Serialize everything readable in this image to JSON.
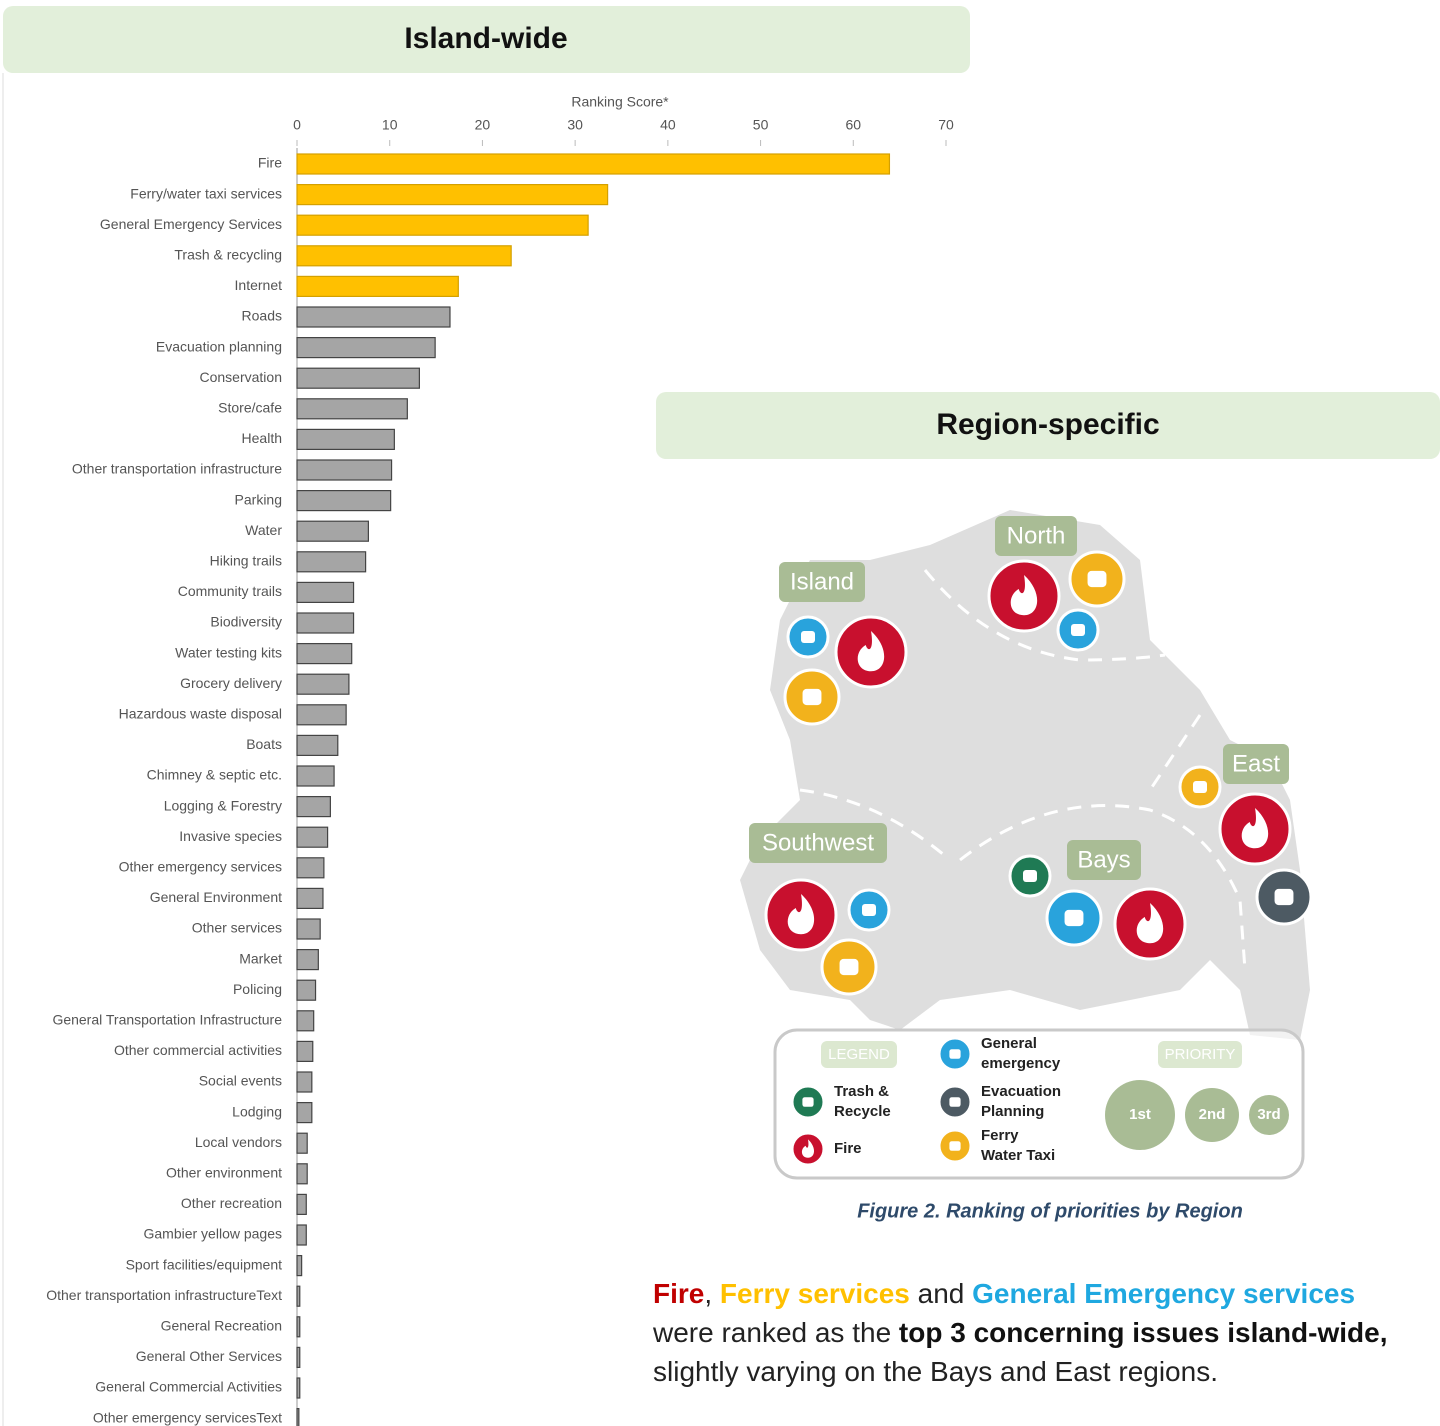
{
  "chart_data": {
    "type": "barh",
    "title": "Island-wide",
    "x_label": "Ranking Score*",
    "categories": [
      "Fire",
      "Ferry/water taxi services",
      "General Emergency Services",
      "Trash & recycling",
      "Internet",
      "Roads",
      "Evacuation planning",
      "Conservation",
      "Store/cafe",
      "Health",
      "Other transportation infrastructure",
      "Parking",
      "Water",
      "Hiking trails",
      "Community trails",
      "Biodiversity",
      "Water testing kits",
      "Grocery delivery",
      "Hazardous waste disposal",
      "Boats",
      "Chimney & septic etc.",
      "Logging & Forestry",
      "Invasive species",
      "Other emergency services",
      "General Environment",
      "Other services",
      "Market",
      "Policing",
      "General Transportation Infrastructure",
      "Other commercial activities",
      "Social events",
      "Lodging",
      "Local vendors",
      "Other environment",
      "Other recreation",
      "Gambier yellow pages",
      "Sport facilities/equipment",
      "Other transportation infrastructureText",
      "General Recreation",
      "General Other Services",
      "General Commercial Activities",
      "Other emergency servicesText"
    ],
    "values": [
      63.9,
      33.5,
      31.4,
      23.1,
      17.4,
      16.5,
      14.9,
      13.2,
      11.9,
      10.5,
      10.2,
      10.1,
      7.7,
      7.4,
      6.1,
      6.1,
      5.9,
      5.6,
      5.3,
      4.4,
      4.0,
      3.6,
      3.3,
      2.9,
      2.8,
      2.5,
      2.3,
      2.0,
      1.8,
      1.7,
      1.6,
      1.6,
      1.1,
      1.1,
      1.0,
      1.0,
      0.5,
      0.3,
      0.3,
      0.3,
      0.3,
      0.2
    ],
    "colors": [
      "#ffc000",
      "#ffc000",
      "#ffc000",
      "#ffc000",
      "#ffc000",
      "#a5a5a5",
      "#a5a5a5",
      "#a5a5a5",
      "#a5a5a5",
      "#a5a5a5",
      "#a5a5a5",
      "#a5a5a5",
      "#a5a5a5",
      "#a5a5a5",
      "#a5a5a5",
      "#a5a5a5",
      "#a5a5a5",
      "#a5a5a5",
      "#a5a5a5",
      "#a5a5a5",
      "#a5a5a5",
      "#a5a5a5",
      "#a5a5a5",
      "#a5a5a5",
      "#a5a5a5",
      "#a5a5a5",
      "#a5a5a5",
      "#a5a5a5",
      "#a5a5a5",
      "#a5a5a5",
      "#a5a5a5",
      "#a5a5a5",
      "#a5a5a5",
      "#a5a5a5",
      "#a5a5a5",
      "#a5a5a5",
      "#a5a5a5",
      "#a5a5a5",
      "#a5a5a5",
      "#a5a5a5",
      "#a5a5a5",
      "#a5a5a5"
    ],
    "xlim": [
      0,
      70
    ],
    "xticks": [
      0,
      10,
      20,
      30,
      40,
      50,
      60,
      70
    ]
  },
  "region": {
    "title": "Region-specific",
    "regions": [
      "North",
      "Island",
      "East",
      "Southwest",
      "Bays"
    ],
    "legend": {
      "title": "LEGEND",
      "items": [
        {
          "lines": [
            "General",
            "emergency"
          ]
        },
        {
          "lines": [
            "Trash &",
            "Recycle"
          ]
        },
        {
          "lines": [
            "Evacuation",
            "Planning"
          ]
        },
        {
          "lines": [
            "Fire"
          ]
        },
        {
          "lines": [
            "Ferry",
            "Water Taxi"
          ]
        }
      ],
      "priority_title": "PRIORITY",
      "priorities": [
        "1st",
        "2nd",
        "3rd"
      ]
    },
    "caption": "Figure 2. Ranking of priorities by Region"
  },
  "text": {
    "segments": [
      {
        "text": "Fire",
        "color": "#c00000",
        "bold": true
      },
      {
        "text": ", ",
        "color": "#222222",
        "bold": false
      },
      {
        "text": "Ferry services",
        "color": "#ffc000",
        "bold": true
      },
      {
        "text": " and ",
        "color": "#222222",
        "bold": false
      },
      {
        "text": "General Emergency services",
        "color": "#1fa8e0",
        "bold": true
      },
      {
        "text": " were ranked as the ",
        "color": "#222222",
        "bold": false
      },
      {
        "text": "top 3 concerning issues island-wide,",
        "color": "#111111",
        "bold": true
      },
      {
        "text": " slightly varying on the Bays and East regions.",
        "color": "#222222",
        "bold": false
      }
    ]
  }
}
